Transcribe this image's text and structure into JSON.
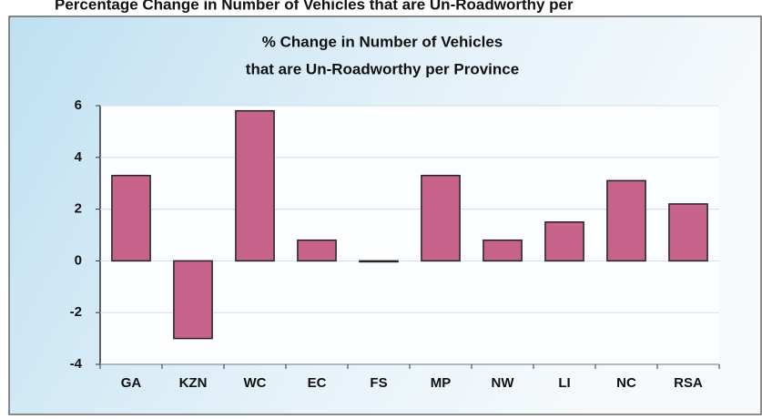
{
  "caption": "Percentage Change in Number of Vehicles that are Un-Roadworthy per",
  "chart_data": {
    "type": "bar",
    "title": [
      "% Change in Number of Vehicles",
      "that are Un-Roadworthy per Province"
    ],
    "categories": [
      "GA",
      "KZN",
      "WC",
      "EC",
      "FS",
      "MP",
      "NW",
      "LI",
      "NC",
      "RSA"
    ],
    "values": [
      3.3,
      -3.0,
      5.8,
      0.8,
      0,
      3.3,
      0.8,
      1.5,
      3.1,
      2.2
    ],
    "color": "#c8648c",
    "ylim": [
      -4,
      6
    ],
    "yticks": [
      -4,
      -2,
      0,
      2,
      4,
      6
    ],
    "grid": true
  }
}
